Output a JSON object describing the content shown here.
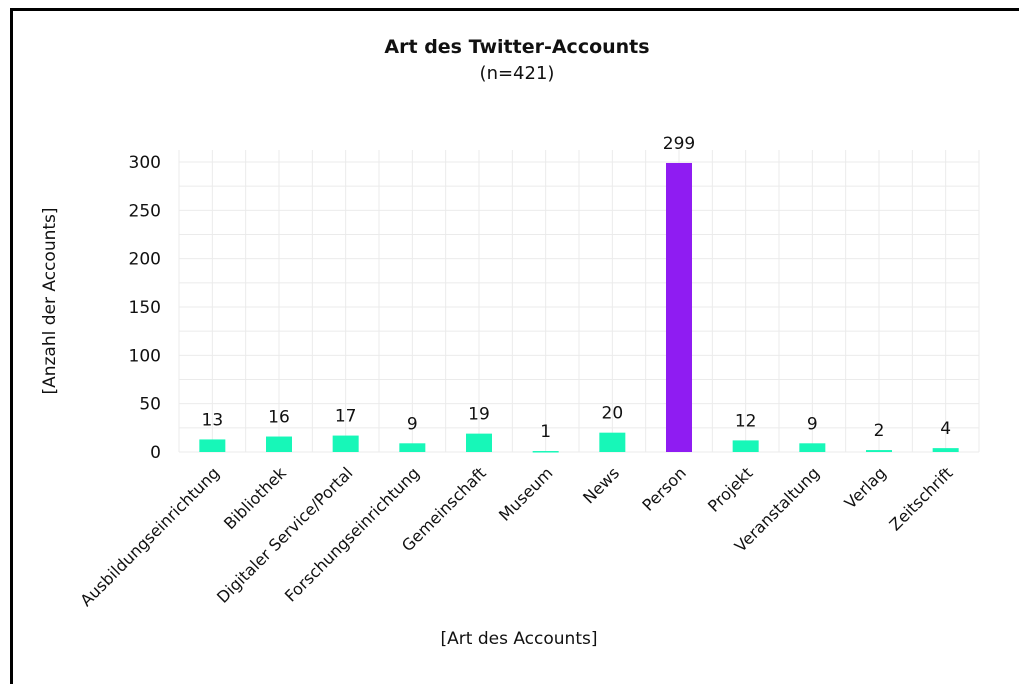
{
  "chart_data": {
    "type": "bar",
    "title": "Art des Twitter-Accounts",
    "subtitle": "(n=421)",
    "xlabel": "[Art des Accounts]",
    "ylabel": "[Anzahl der Accounts]",
    "categories": [
      "Ausbildungseinrichtung",
      "Bibliothek",
      "Digitaler Service/Portal",
      "Forschungseinrichtung",
      "Gemeinschaft",
      "Museum",
      "News",
      "Person",
      "Projekt",
      "Veranstaltung",
      "Verlag",
      "Zeitschrift"
    ],
    "values": [
      13,
      16,
      17,
      9,
      19,
      1,
      20,
      299,
      12,
      9,
      2,
      4
    ],
    "data_labels": [
      "13",
      "16",
      "17",
      "9",
      "19",
      "1",
      "20",
      "299",
      "12",
      "9",
      "2",
      "4"
    ],
    "ylim": [
      0,
      300
    ],
    "yticks": [
      0,
      50,
      100,
      150,
      200,
      250,
      300
    ],
    "grid": true,
    "colors": {
      "default": "#17f7b8",
      "highlight": "#8f1cf2",
      "grid": "#ebebeb"
    },
    "highlight_category": "Person"
  }
}
